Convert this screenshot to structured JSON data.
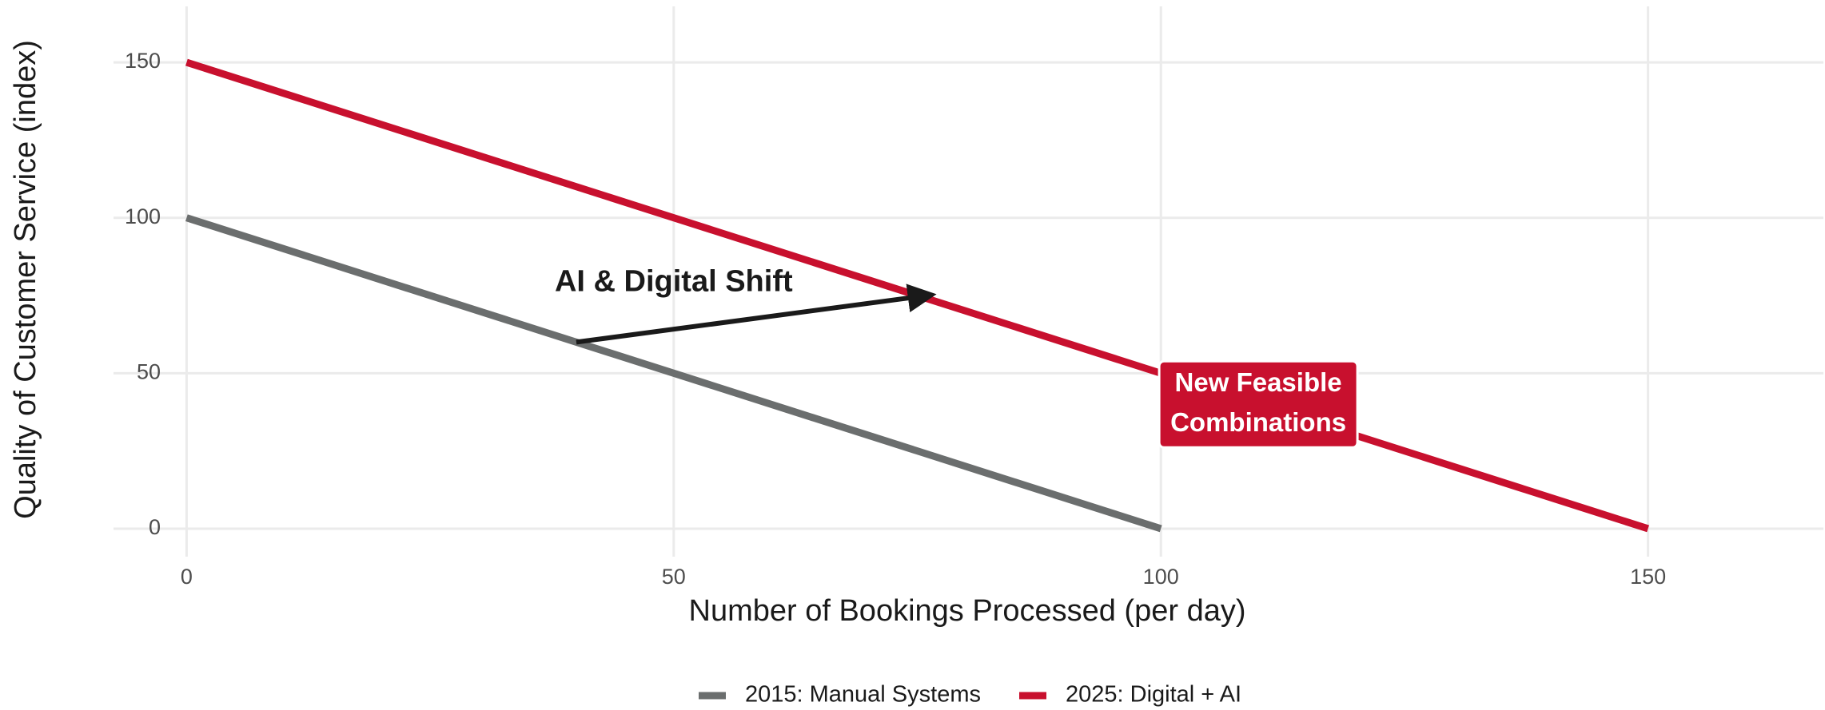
{
  "chart_data": {
    "type": "line",
    "xlabel": "Number of Bookings Processed (per day)",
    "ylabel": "Quality of Customer Service (index)",
    "series": [
      {
        "name": "2015: Manual Systems",
        "color": "#6b6e6e",
        "x": [
          0,
          100
        ],
        "values": [
          100,
          0
        ]
      },
      {
        "name": "2025: Digital + AI",
        "color": "#c8102e",
        "x": [
          0,
          150
        ],
        "values": [
          150,
          0
        ]
      }
    ],
    "xlim": [
      -7.5,
      168
    ],
    "ylim": [
      -9,
      168
    ],
    "xticks": [
      0,
      50,
      100,
      150
    ],
    "yticks": [
      0,
      50,
      100,
      150
    ],
    "grid": true,
    "legend": "bottom",
    "annotations": [
      {
        "text": "AI & Digital Shift",
        "x": 50,
        "y": 79,
        "arrow": {
          "x": [
            40,
            76
          ],
          "y": [
            60,
            75
          ]
        },
        "color": "#1a1a1a"
      },
      {
        "label": [
          "New Feasible",
          "Combinations"
        ],
        "x": 110,
        "y": 40,
        "color": "#c8102e"
      }
    ]
  }
}
